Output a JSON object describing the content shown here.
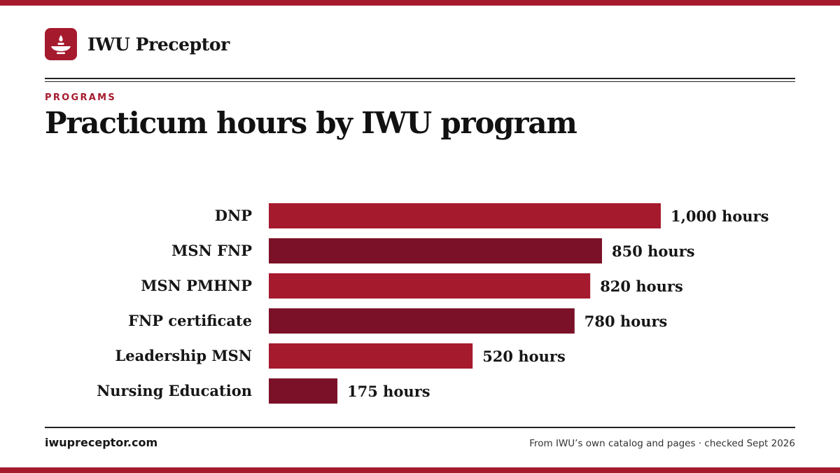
{
  "brand": {
    "name": "IWU Preceptor",
    "logo_icon": "lamp-icon"
  },
  "eyebrow": "PROGRAMS",
  "title": "Practicum hours by IWU program",
  "colors": {
    "bar_primary": "#a61a2e",
    "bar_alternate": "#7b1128",
    "accent": "#a61a2e"
  },
  "chart_data": {
    "type": "bar",
    "orientation": "horizontal",
    "title": "Practicum hours by IWU program",
    "categories": [
      "DNP",
      "MSN FNP",
      "MSN PMHNP",
      "FNP certificate",
      "Leadership MSN",
      "Nursing Education"
    ],
    "values": [
      1000,
      850,
      820,
      780,
      520,
      175
    ],
    "value_labels": [
      "1,000 hours",
      "850 hours",
      "820 hours",
      "780 hours",
      "520 hours",
      "175 hours"
    ],
    "xlim": [
      0,
      1000
    ],
    "unit": "hours",
    "grid": false,
    "legend": "none"
  },
  "footer": {
    "site": "iwupreceptor.com",
    "source": "From IWU’s own catalog and pages · checked Sept 2026"
  }
}
